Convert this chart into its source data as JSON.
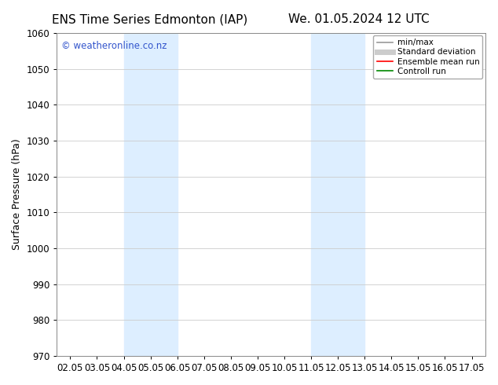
{
  "title_left": "ENS Time Series Edmonton (IAP)",
  "title_right": "We. 01.05.2024 12 UTC",
  "ylabel": "Surface Pressure (hPa)",
  "ylim": [
    970,
    1060
  ],
  "yticks": [
    970,
    980,
    990,
    1000,
    1010,
    1020,
    1030,
    1040,
    1050,
    1060
  ],
  "xlim_start": 1.5,
  "xlim_end": 17.5,
  "xtick_labels": [
    "02.05",
    "03.05",
    "04.05",
    "05.05",
    "06.05",
    "07.05",
    "08.05",
    "09.05",
    "10.05",
    "11.05",
    "12.05",
    "13.05",
    "14.05",
    "15.05",
    "16.05",
    "17.05"
  ],
  "xtick_positions": [
    2,
    3,
    4,
    5,
    6,
    7,
    8,
    9,
    10,
    11,
    12,
    13,
    14,
    15,
    16,
    17
  ],
  "shaded_bands": [
    {
      "x_start": 4.0,
      "x_end": 6.0
    },
    {
      "x_start": 11.0,
      "x_end": 13.0
    }
  ],
  "shaded_color": "#ddeeff",
  "background_color": "#ffffff",
  "grid_color": "#cccccc",
  "watermark_text": "© weatheronline.co.nz",
  "watermark_color": "#3355cc",
  "legend_items": [
    {
      "label": "min/max",
      "color": "#999999",
      "lw": 1.2,
      "style": "solid"
    },
    {
      "label": "Standard deviation",
      "color": "#cccccc",
      "lw": 5,
      "style": "solid"
    },
    {
      "label": "Ensemble mean run",
      "color": "#ff0000",
      "lw": 1.2,
      "style": "solid"
    },
    {
      "label": "Controll run",
      "color": "#008800",
      "lw": 1.2,
      "style": "solid"
    }
  ],
  "title_fontsize": 11,
  "tick_fontsize": 8.5,
  "ylabel_fontsize": 9,
  "watermark_fontsize": 8.5,
  "legend_fontsize": 7.5
}
